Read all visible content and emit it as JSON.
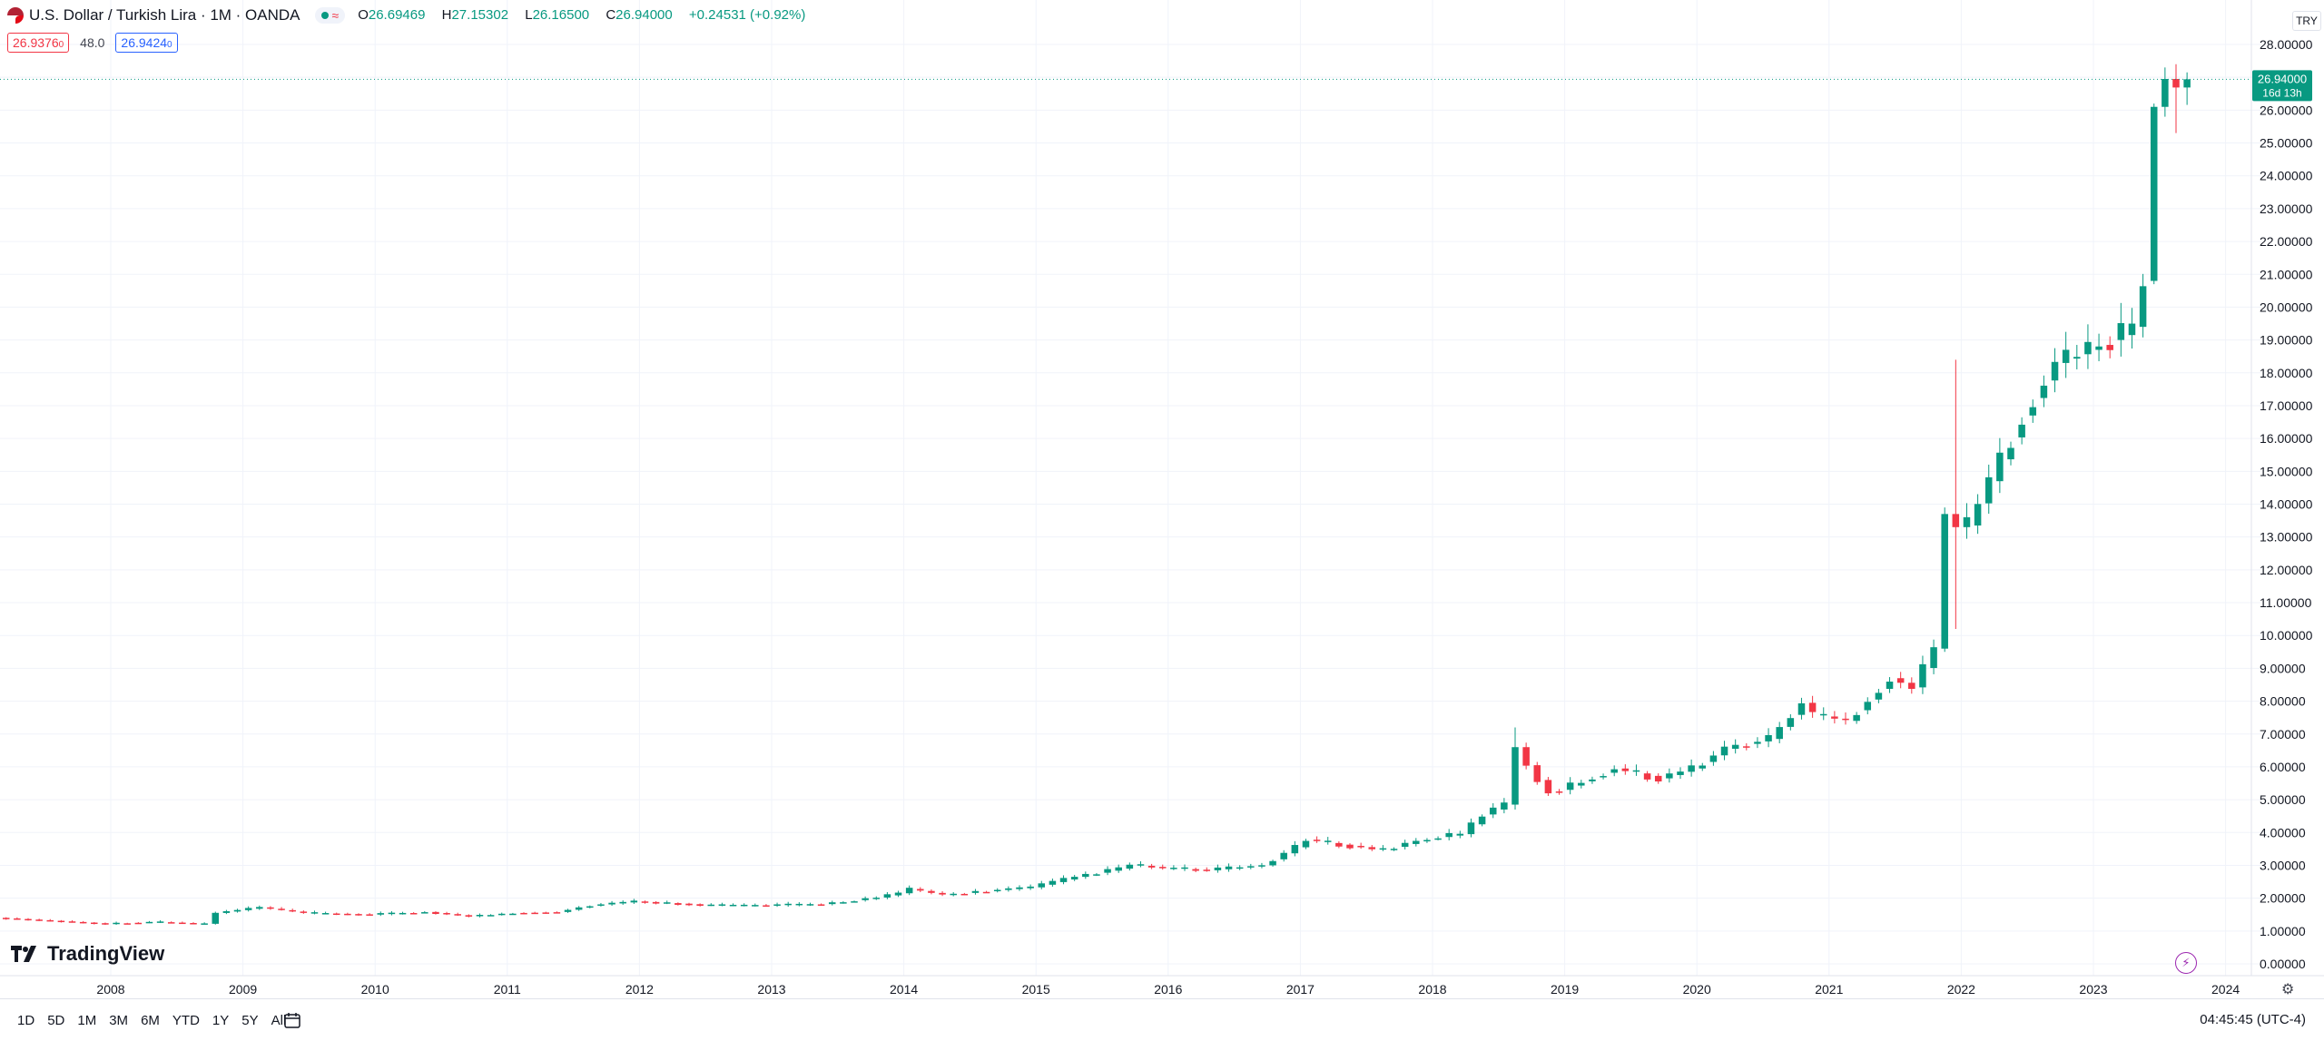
{
  "header": {
    "symbol": "U.S. Dollar / Turkish Lira · 1M · OANDA",
    "open_label": "O",
    "open": "26.69469",
    "high_label": "H",
    "high": "27.15302",
    "low_label": "L",
    "low": "26.16500",
    "close_label": "C",
    "close": "26.94000",
    "change": "+0.24531 (+0.92%)",
    "bid": "26.9376",
    "bid_suffix": "0",
    "spread": "48.0",
    "ask": "26.9424",
    "ask_suffix": "0"
  },
  "currency_button": "TRY",
  "price_tag": {
    "price": "26.94000",
    "countdown": "16d 13h"
  },
  "logo": "TradingView",
  "range_buttons": [
    "1D",
    "5D",
    "1M",
    "3M",
    "6M",
    "YTD",
    "1Y",
    "5Y",
    "All"
  ],
  "clock": "04:45:45 (UTC-4)",
  "colors": {
    "up": "#089981",
    "down": "#f23645",
    "grid": "#f0f3fa",
    "axis_text": "#131722"
  },
  "icons": [
    "flag-icon",
    "calendar-icon",
    "bolt-icon",
    "settings-icon"
  ],
  "chart_data": {
    "type": "candlestick",
    "title": "U.S. Dollar / Turkish Lira · 1M · OANDA",
    "interval": "1M",
    "x_tick_labels": [
      "2008",
      "2009",
      "2010",
      "2011",
      "2012",
      "2013",
      "2014",
      "2015",
      "2016",
      "2017",
      "2018",
      "2019",
      "2020",
      "2021",
      "2022",
      "2023",
      "2024"
    ],
    "y_tick_labels": [
      "0.00000",
      "1.00000",
      "2.00000",
      "3.00000",
      "4.00000",
      "5.00000",
      "6.00000",
      "7.00000",
      "8.00000",
      "9.00000",
      "10.00000",
      "11.00000",
      "12.00000",
      "13.00000",
      "14.00000",
      "15.00000",
      "16.00000",
      "17.00000",
      "18.00000",
      "19.00000",
      "20.00000",
      "21.00000",
      "22.00000",
      "23.00000",
      "24.00000",
      "25.00000",
      "26.00000",
      "27.00000",
      "28.00000"
    ],
    "ylim": [
      0,
      28.3
    ],
    "x_start": "2007-01",
    "grid": true,
    "last_price": 26.94,
    "close_anchors": [
      [
        "2007-01",
        1.42
      ],
      [
        "2007-06",
        1.33
      ],
      [
        "2007-12",
        1.22
      ],
      [
        "2008-04",
        1.28
      ],
      [
        "2008-09",
        1.22
      ],
      [
        "2008-10",
        1.55
      ],
      [
        "2009-02",
        1.72
      ],
      [
        "2009-06",
        1.55
      ],
      [
        "2009-12",
        1.5
      ],
      [
        "2010-05",
        1.58
      ],
      [
        "2010-09",
        1.45
      ],
      [
        "2011-01",
        1.55
      ],
      [
        "2011-05",
        1.58
      ],
      [
        "2011-08",
        1.78
      ],
      [
        "2011-12",
        1.9
      ],
      [
        "2012-06",
        1.8
      ],
      [
        "2012-12",
        1.78
      ],
      [
        "2013-05",
        1.82
      ],
      [
        "2013-10",
        2.02
      ],
      [
        "2013-12",
        2.15
      ],
      [
        "2014-01",
        2.28
      ],
      [
        "2014-04",
        2.1
      ],
      [
        "2014-09",
        2.25
      ],
      [
        "2014-12",
        2.33
      ],
      [
        "2015-04",
        2.65
      ],
      [
        "2015-08",
        2.9
      ],
      [
        "2015-09",
        3.02
      ],
      [
        "2015-12",
        2.92
      ],
      [
        "2016-04",
        2.85
      ],
      [
        "2016-09",
        3.0
      ],
      [
        "2016-12",
        3.55
      ],
      [
        "2017-01",
        3.78
      ],
      [
        "2017-04",
        3.63
      ],
      [
        "2017-08",
        3.48
      ],
      [
        "2017-12",
        3.82
      ],
      [
        "2018-03",
        3.95
      ],
      [
        "2018-05",
        4.55
      ],
      [
        "2018-07",
        4.85
      ],
      [
        "2018-08",
        6.6
      ],
      [
        "2018-09",
        6.05
      ],
      [
        "2018-10",
        5.6
      ],
      [
        "2018-11",
        5.25
      ],
      [
        "2018-12",
        5.3
      ],
      [
        "2019-05",
        5.95
      ],
      [
        "2019-09",
        5.65
      ],
      [
        "2019-12",
        5.95
      ],
      [
        "2020-03",
        6.55
      ],
      [
        "2020-07",
        6.85
      ],
      [
        "2020-10",
        7.95
      ],
      [
        "2020-11",
        7.6
      ],
      [
        "2021-02",
        7.4
      ],
      [
        "2021-06",
        8.7
      ],
      [
        "2021-08",
        8.42
      ],
      [
        "2021-10",
        9.6
      ],
      [
        "2021-11",
        13.7
      ],
      [
        "2021-12",
        13.3
      ],
      [
        "2022-01",
        13.35
      ],
      [
        "2022-03",
        14.7
      ],
      [
        "2022-06",
        16.7
      ],
      [
        "2022-09",
        18.3
      ],
      [
        "2022-12",
        18.7
      ],
      [
        "2023-03",
        19.15
      ],
      [
        "2023-04",
        19.4
      ],
      [
        "2023-05",
        20.8
      ],
      [
        "2023-06",
        26.1
      ],
      [
        "2023-07",
        26.95
      ],
      [
        "2023-08",
        26.69
      ],
      [
        "2023-09",
        26.94
      ]
    ],
    "highlight_candles": [
      {
        "date": "2018-08",
        "open": 4.85,
        "high": 7.2,
        "low": 4.7,
        "close": 6.6
      },
      {
        "date": "2021-11",
        "open": 9.6,
        "high": 13.9,
        "low": 9.5,
        "close": 13.7
      },
      {
        "date": "2021-12",
        "open": 13.7,
        "high": 18.4,
        "low": 10.2,
        "close": 13.3
      },
      {
        "date": "2023-06",
        "open": 20.8,
        "high": 26.2,
        "low": 20.7,
        "close": 26.1
      },
      {
        "date": "2023-07",
        "open": 26.1,
        "high": 27.3,
        "low": 25.8,
        "close": 26.95
      },
      {
        "date": "2023-08",
        "open": 26.95,
        "high": 27.4,
        "low": 25.3,
        "close": 26.69
      },
      {
        "date": "2023-09",
        "open": 26.69,
        "high": 27.15,
        "low": 26.16,
        "close": 26.94
      }
    ]
  }
}
